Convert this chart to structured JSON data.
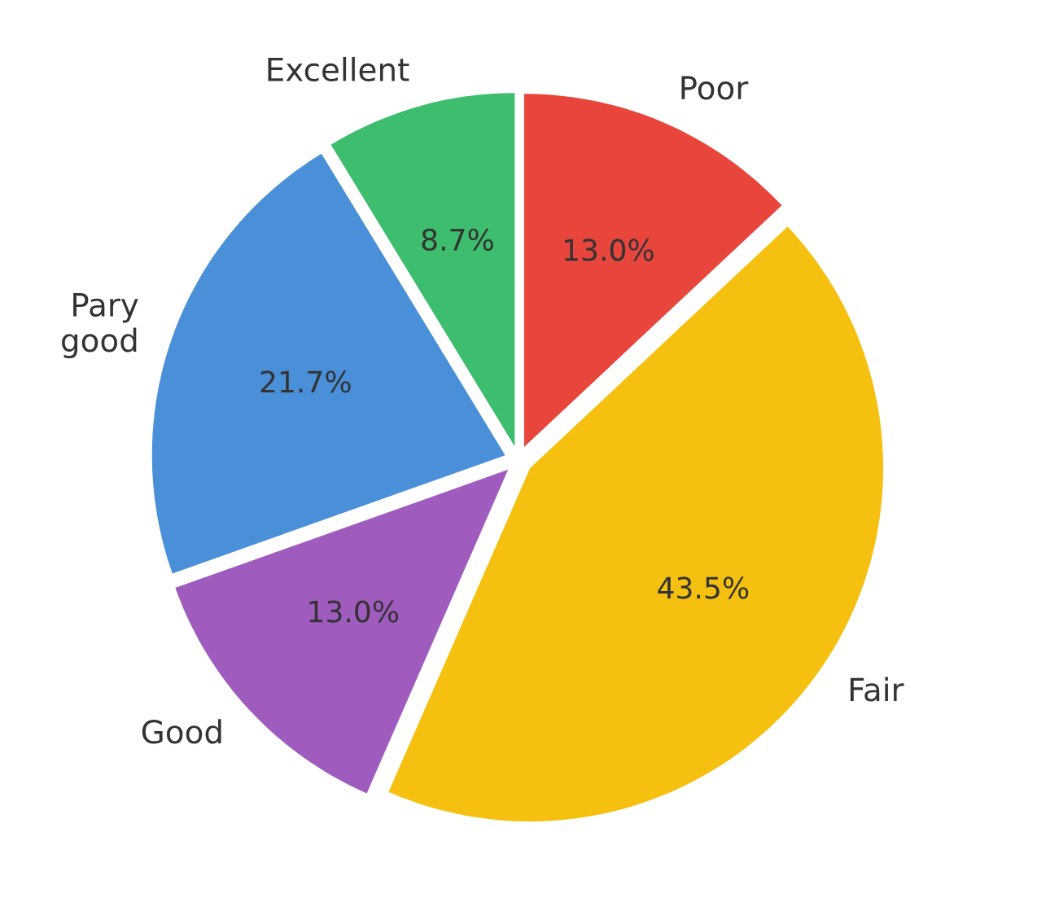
{
  "chart_data": {
    "type": "pie",
    "categories": [
      "Poor",
      "Fair",
      "Good",
      "Pary\ngood",
      "Excellent"
    ],
    "values": [
      13.0,
      43.5,
      13.0,
      21.7,
      8.7
    ],
    "colors": [
      "#e8453c",
      "#f5c00f",
      "#a05bbf",
      "#4a90d9",
      "#3dbd6e"
    ],
    "value_labels": [
      "13.0%",
      "43.5%",
      "13.0%",
      "21.7%",
      "8.7%"
    ]
  }
}
